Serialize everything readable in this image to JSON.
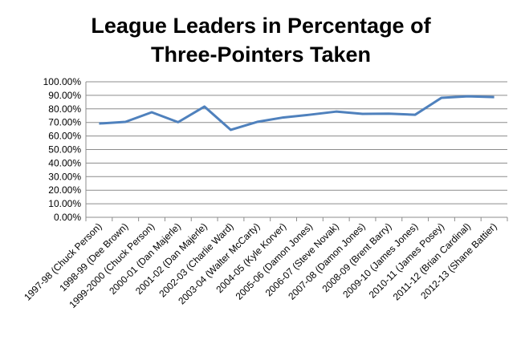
{
  "chart_data": {
    "type": "line",
    "title": "League Leaders in Percentage of Three-Pointers Taken",
    "categories": [
      "1997-98 (Chuck Person)",
      "1998-99 (Dee Brown)",
      "1999-2000 (Chuck Person)",
      "2000-01 (Dan Majerle)",
      "2001-02 (Dan Majerle)",
      "2002-03 (Charlie Ward)",
      "2003-04 (Walter McCarty)",
      "2004-05 (Kyle Korver)",
      "2005-06 (Damon Jones)",
      "2006-07 (Steve Novak)",
      "2007-08 (Damon Jones)",
      "2008-09 (Brent Barry)",
      "2009-10 (James Jones)",
      "2010-11 (James Posey)",
      "2011-12 (Brian Cardinal)",
      "2012-13 (Shane Battier)"
    ],
    "values": [
      69.2,
      70.4,
      77.5,
      70.2,
      81.7,
      64.5,
      70.4,
      73.7,
      75.7,
      78,
      76.3,
      76.5,
      75.7,
      88.2,
      89.3,
      88.7
    ],
    "color": "#4f81bd",
    "ylim": [
      0,
      100
    ],
    "yticks": [
      {
        "value": 0,
        "label": "0.00%"
      },
      {
        "value": 10,
        "label": "10.00%"
      },
      {
        "value": 20,
        "label": "20.00%"
      },
      {
        "value": 30,
        "label": "30.00%"
      },
      {
        "value": 40,
        "label": "40.00%"
      },
      {
        "value": 50,
        "label": "50.00%"
      },
      {
        "value": 60,
        "label": "60.00%"
      },
      {
        "value": 70,
        "label": "70.00%"
      },
      {
        "value": 80,
        "label": "80.00%"
      },
      {
        "value": 90,
        "label": "90.00%"
      },
      {
        "value": 100,
        "label": "100.00%"
      }
    ],
    "grid": true
  }
}
